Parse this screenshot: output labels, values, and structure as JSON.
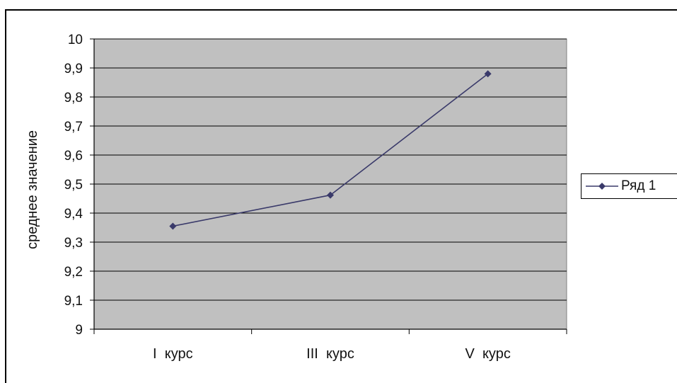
{
  "chart_data": {
    "type": "line",
    "categories": [
      "I  курс",
      "III  курс",
      "V  курс"
    ],
    "series": [
      {
        "name": "Ряд 1",
        "values": [
          9.355,
          9.462,
          9.88
        ],
        "color": "#3a3a6a"
      }
    ],
    "ylabel": "среднее  значение",
    "ylim": [
      9,
      10
    ],
    "yticks": [
      "9",
      "9,1",
      "9,2",
      "9,3",
      "9,4",
      "9,5",
      "9,6",
      "9,7",
      "9,8",
      "9,9",
      "10"
    ],
    "grid": true,
    "plot_background": "#c0c0c0",
    "legend": "right"
  }
}
